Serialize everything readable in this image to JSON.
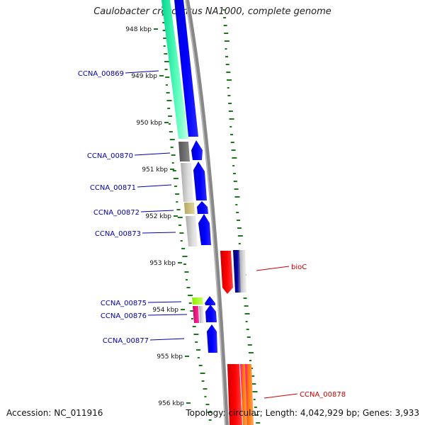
{
  "title": "Caulobacter crescentus NA1000, complete genome",
  "accession": "Accession: NC_011916",
  "summary": "Topology: circular; Length: 4,042,929 bp; Genes: 3,933",
  "kbp_ticks": [
    "948 kbp",
    "949 kbp",
    "950 kbp",
    "951 kbp",
    "952 kbp",
    "953 kbp",
    "954 kbp",
    "955 kbp",
    "956 kbp"
  ],
  "genes_left": [
    {
      "label": "CCNA_00869"
    },
    {
      "label": "CCNA_00870"
    },
    {
      "label": "CCNA_00871"
    },
    {
      "label": "CCNA_00872"
    },
    {
      "label": "CCNA_00873"
    },
    {
      "label": "CCNA_00875"
    },
    {
      "label": "CCNA_00876"
    },
    {
      "label": "CCNA_00877"
    }
  ],
  "genes_right": [
    {
      "label": "bioC"
    },
    {
      "label": "CCNA_00878"
    }
  ],
  "colors": {
    "forward_cds": "#0000ee",
    "reverse_cds": "#ee0000",
    "backbone": "#888888",
    "gc_skew": "#1a7a1a",
    "left_label": "#0000aa",
    "right_label": "#cc0000"
  }
}
